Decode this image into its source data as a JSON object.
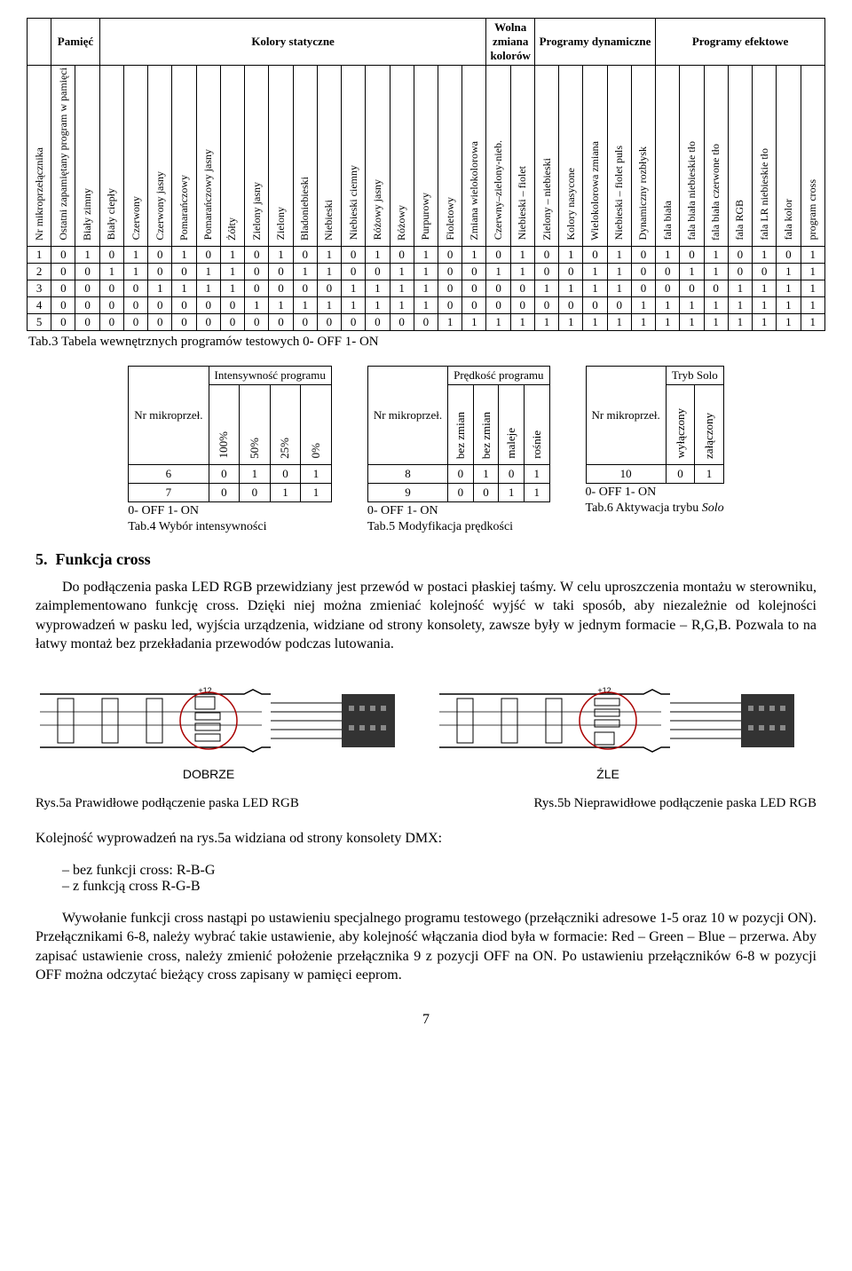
{
  "mainTable": {
    "groups": [
      {
        "label": "Pamięć",
        "span": 2
      },
      {
        "label": "Kolory statyczne",
        "span": 16
      },
      {
        "label": "Wolna zmiana kolorów",
        "span": 2
      },
      {
        "label": "Programy dynamiczne",
        "span": 5
      },
      {
        "label": "Programy efektowe",
        "span": 8
      }
    ],
    "cols": [
      "Nr mikroprzełącznika",
      "Ostatni zapamiętany program w pamięci",
      "Biały zimny",
      "Biały ciepły",
      "Czerwony",
      "Czerwony jasny",
      "Pomarańczowy",
      "Pomarańczowy jasny",
      "Żółty",
      "Zielony jasny",
      "Zielony",
      "Bladoniebieski",
      "Niebieski",
      "Niebieski ciemny",
      "Różowy jasny",
      "Różowy",
      "Purpurowy",
      "Fioletowy",
      "Zmiana wielokolorowa",
      "Czerwny–zielony-nieb.",
      "Niebieski – fiolet",
      "Zielony – niebieski",
      "Kolory nasycone",
      "Wielokolorowa zmiana",
      "Niebieski – fiolet puls",
      "Dynamiczny rozbłysk",
      "fala biała",
      "fala biała niebieskie tło",
      "fala biała czerwone tło",
      "fala RGB",
      "fala LR niebieskie tło",
      "fala kolor",
      "program cross"
    ],
    "rows": [
      [
        "1",
        "0",
        "1",
        "0",
        "1",
        "0",
        "1",
        "0",
        "1",
        "0",
        "1",
        "0",
        "1",
        "0",
        "1",
        "0",
        "1",
        "0",
        "1",
        "0",
        "1",
        "0",
        "1",
        "0",
        "1",
        "0",
        "1",
        "0",
        "1",
        "0",
        "1",
        "0",
        "1"
      ],
      [
        "2",
        "0",
        "0",
        "1",
        "1",
        "0",
        "0",
        "1",
        "1",
        "0",
        "0",
        "1",
        "1",
        "0",
        "0",
        "1",
        "1",
        "0",
        "0",
        "1",
        "1",
        "0",
        "0",
        "1",
        "1",
        "0",
        "0",
        "1",
        "1",
        "0",
        "0",
        "1",
        "1"
      ],
      [
        "3",
        "0",
        "0",
        "0",
        "0",
        "1",
        "1",
        "1",
        "1",
        "0",
        "0",
        "0",
        "0",
        "1",
        "1",
        "1",
        "1",
        "0",
        "0",
        "0",
        "0",
        "1",
        "1",
        "1",
        "1",
        "0",
        "0",
        "0",
        "0",
        "1",
        "1",
        "1",
        "1"
      ],
      [
        "4",
        "0",
        "0",
        "0",
        "0",
        "0",
        "0",
        "0",
        "0",
        "1",
        "1",
        "1",
        "1",
        "1",
        "1",
        "1",
        "1",
        "0",
        "0",
        "0",
        "0",
        "0",
        "0",
        "0",
        "0",
        "1",
        "1",
        "1",
        "1",
        "1",
        "1",
        "1",
        "1"
      ],
      [
        "5",
        "0",
        "0",
        "0",
        "0",
        "0",
        "0",
        "0",
        "0",
        "0",
        "0",
        "0",
        "0",
        "0",
        "0",
        "0",
        "0",
        "1",
        "1",
        "1",
        "1",
        "1",
        "1",
        "1",
        "1",
        "1",
        "1",
        "1",
        "1",
        "1",
        "1",
        "1",
        "1"
      ]
    ],
    "caption": "Tab.3 Tabela wewnętrznych programów testowych    0- OFF      1- ON"
  },
  "tab4": {
    "rotFirst": "Nr mikroprzeł.",
    "top": "Intensywność programu",
    "opts": [
      "100%",
      "50%",
      "25%",
      "0%"
    ],
    "rows": [
      [
        "6",
        "0",
        "1",
        "0",
        "1"
      ],
      [
        "7",
        "0",
        "0",
        "1",
        "1"
      ]
    ],
    "line1": "0- OFF    1- ON",
    "line2": "Tab.4 Wybór intensywności"
  },
  "tab5": {
    "rotFirst": "Nr mikroprzeł.",
    "top": "Prędkość programu",
    "opts": [
      "bez zmian",
      "bez zmian",
      "maleje",
      "rośnie"
    ],
    "rows": [
      [
        "8",
        "0",
        "1",
        "0",
        "1"
      ],
      [
        "9",
        "0",
        "0",
        "1",
        "1"
      ]
    ],
    "line1": "0- OFF    1- ON",
    "line2": "Tab.5 Modyfikacja prędkości"
  },
  "tab6": {
    "rotFirst": "Nr mikroprzeł.",
    "top": "Tryb Solo",
    "opts": [
      "wyłączony",
      "załączony"
    ],
    "rows": [
      [
        "10",
        "0",
        "1"
      ]
    ],
    "line1": "0- OFF    1- ON",
    "line2": "Tab.6 Aktywacja trybu "
  },
  "soloItalic": "Solo",
  "section": {
    "num": "5.",
    "title": "Funkcja cross"
  },
  "para1": "Do podłączenia paska LED RGB przewidziany jest przewód w postaci płaskiej taśmy. W celu uproszczenia montażu w sterowniku, zaimplementowano funkcję cross. Dzięki niej można zmieniać kolejność wyjść w taki sposób, aby niezależnie od kolejności wyprowadzeń w pasku led, wyjścia urządzenia, widziane od strony konsolety, zawsze były w jednym formacie – R,G,B. Pozwala to na łatwy montaż bez przekładania przewodów podczas lutowania.",
  "diag": {
    "left": "DOBRZE",
    "right": "ŹLE",
    "plus12": "+12"
  },
  "cap5a": "Rys.5a  Prawidłowe podłączenie paska LED RGB",
  "cap5b": "Rys.5b Nieprawidłowe podłączenie paska LED RGB",
  "para2": "Kolejność wyprowadzeń na rys.5a widziana od strony konsolety DMX:",
  "li1": "bez funkcji cross: R-B-G",
  "li2": "z funkcją cross R-G-B",
  "para3": "Wywołanie funkcji cross nastąpi po ustawieniu specjalnego programu testowego (przełączniki adresowe 1-5 oraz 10 w pozycji ON). Przełącznikami 6-8, należy wybrać takie ustawienie, aby kolejność włączania diod była w formacie: Red – Green – Blue – przerwa. Aby zapisać ustawienie cross, należy zmienić położenie przełącznika 9 z pozycji OFF na ON. Po ustawieniu przełączników 6-8 w pozycji OFF można odczytać bieżący cross zapisany w pamięci eeprom.",
  "pageNum": "7"
}
